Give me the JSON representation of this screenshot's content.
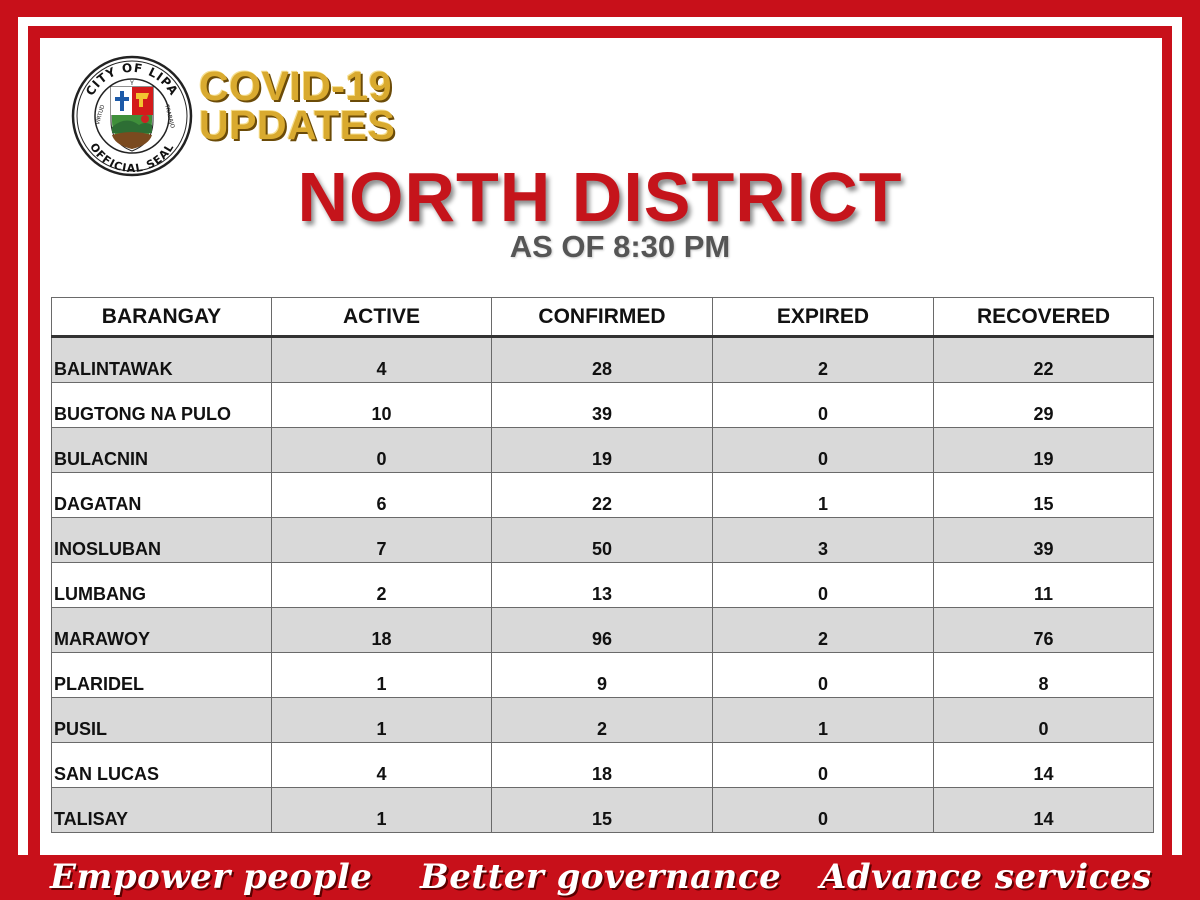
{
  "seal": {
    "top_text": "CITY OF LIPA",
    "bottom_text": "OFFICIAL SEAL",
    "left_text": "VIRTUD",
    "center_text": "Y",
    "right_text": "TRABAJO"
  },
  "header": {
    "title_line1": "COVID-19",
    "title_line2": "UPDATES",
    "district": "NORTH DISTRICT",
    "as_of": "AS OF 8:30 PM"
  },
  "table": {
    "columns": [
      "BARANGAY",
      "ACTIVE",
      "CONFIRMED",
      "EXPIRED",
      "RECOVERED"
    ],
    "rows": [
      [
        "BALINTAWAK",
        "4",
        "28",
        "2",
        "22"
      ],
      [
        "BUGTONG NA PULO",
        "10",
        "39",
        "0",
        "29"
      ],
      [
        "BULACNIN",
        "0",
        "19",
        "0",
        "19"
      ],
      [
        "DAGATAN",
        "6",
        "22",
        "1",
        "15"
      ],
      [
        "INOSLUBAN",
        "7",
        "50",
        "3",
        "39"
      ],
      [
        "LUMBANG",
        "2",
        "13",
        "0",
        "11"
      ],
      [
        "MARAWOY",
        "18",
        "96",
        "2",
        "76"
      ],
      [
        "PLARIDEL",
        "1",
        "9",
        "0",
        "8"
      ],
      [
        "PUSIL",
        "1",
        "2",
        "1",
        "0"
      ],
      [
        "SAN LUCAS",
        "4",
        "18",
        "0",
        "14"
      ],
      [
        "TALISAY",
        "1",
        "15",
        "0",
        "14"
      ]
    ]
  },
  "footer": {
    "slogan1": "Empower people",
    "slogan2": "Better governance",
    "slogan3": "Advance services"
  },
  "colors": {
    "frame_red": "#c8101a",
    "gold": "#d9aa2f",
    "row_gray": "#d9d9d9"
  }
}
